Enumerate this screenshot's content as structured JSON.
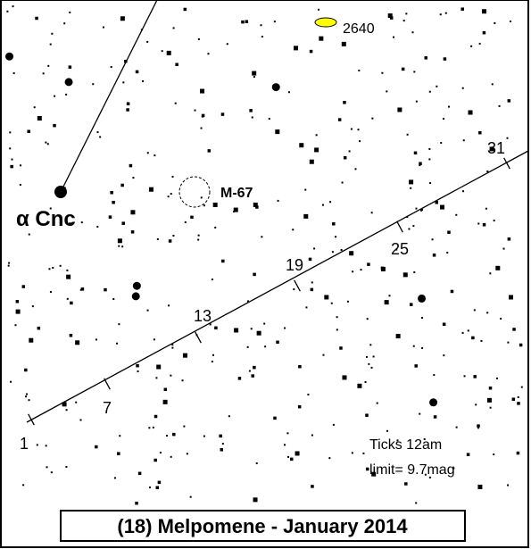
{
  "title": "(18) Melpomene - January 2014",
  "labels": {
    "star": "α Cnc",
    "cluster": "M-67",
    "object": "2640"
  },
  "track": {
    "ticks": [
      1,
      7,
      13,
      19,
      25,
      31
    ]
  },
  "notes": {
    "ticks": "Ticks 12am",
    "limit": "limit= 9.7mag"
  }
}
